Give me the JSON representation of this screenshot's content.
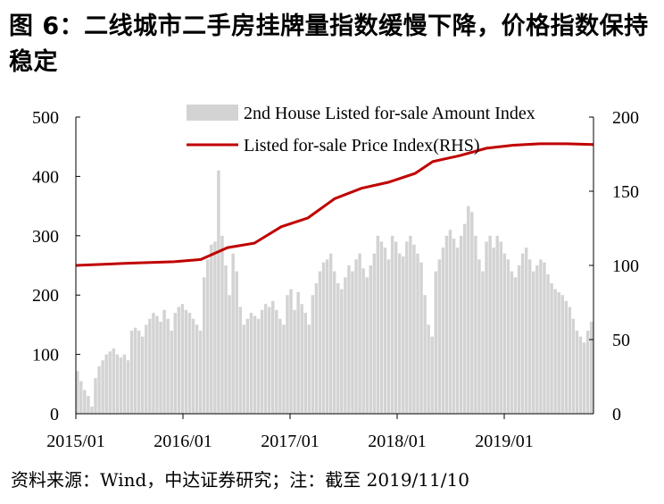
{
  "title": "图 6：二线城市二手房挂牌量指数缓慢下降，价格指数保持稳定",
  "source_note": "资料来源：Wind，中达证券研究；注：截至 2019/11/10",
  "colors": {
    "bars": "#d3d3d3",
    "line": "#c00000"
  },
  "chart_data": {
    "type": "bar+line",
    "title": "",
    "ylim_left": [
      0,
      500
    ],
    "ylim_right": [
      0,
      200
    ],
    "yticks_left": [
      "0",
      "100",
      "200",
      "300",
      "400",
      "500"
    ],
    "yticks_right": [
      "0",
      "50",
      "100",
      "150",
      "200"
    ],
    "xticks": [
      "2015/01",
      "2016/01",
      "2017/01",
      "2018/01",
      "2019/01"
    ],
    "x_range": [
      "2015/01",
      "2019/11"
    ],
    "legend_position": "top-right",
    "series": [
      {
        "name": "2nd House Listed for-sale Amount Index",
        "kind": "bar",
        "axis": "left",
        "values": [
          72,
          55,
          40,
          30,
          12,
          60,
          80,
          90,
          100,
          105,
          110,
          100,
          95,
          100,
          90,
          140,
          145,
          140,
          130,
          150,
          160,
          170,
          165,
          155,
          175,
          160,
          140,
          170,
          180,
          185,
          175,
          170,
          160,
          150,
          140,
          230,
          260,
          285,
          290,
          410,
          300,
          250,
          200,
          270,
          240,
          180,
          150,
          160,
          170,
          165,
          160,
          175,
          185,
          180,
          190,
          175,
          160,
          150,
          200,
          210,
          175,
          205,
          185,
          170,
          150,
          200,
          220,
          240,
          255,
          260,
          270,
          240,
          220,
          210,
          230,
          250,
          240,
          260,
          270,
          245,
          230,
          250,
          270,
          300,
          290,
          280,
          260,
          300,
          290,
          270,
          265,
          290,
          300,
          285,
          270,
          255,
          200,
          150,
          130,
          240,
          260,
          280,
          300,
          310,
          295,
          280,
          300,
          320,
          350,
          340,
          300,
          260,
          240,
          290,
          300,
          280,
          300,
          290,
          270,
          260,
          240,
          230,
          250,
          270,
          280,
          260,
          240,
          250,
          260,
          255,
          235,
          220,
          210,
          205,
          200,
          190,
          180,
          160,
          140,
          130,
          120,
          140,
          155
        ]
      },
      {
        "name": "Listed for-sale Price Index(RHS)",
        "kind": "line",
        "axis": "right",
        "points": [
          [
            "2015/01",
            100.0
          ],
          [
            "2015/07",
            101.5
          ],
          [
            "2015/12",
            102.5
          ],
          [
            "2016/03",
            104.0
          ],
          [
            "2016/06",
            112.0
          ],
          [
            "2016/09",
            115.0
          ],
          [
            "2016/12",
            126.0
          ],
          [
            "2017/03",
            132.0
          ],
          [
            "2017/06",
            145.0
          ],
          [
            "2017/09",
            152.0
          ],
          [
            "2017/12",
            156.0
          ],
          [
            "2018/03",
            162.0
          ],
          [
            "2018/05",
            170.0
          ],
          [
            "2018/08",
            174.0
          ],
          [
            "2018/11",
            179.0
          ],
          [
            "2019/02",
            181.0
          ],
          [
            "2019/05",
            182.0
          ],
          [
            "2019/08",
            182.0
          ],
          [
            "2019/11",
            181.5
          ]
        ]
      }
    ]
  }
}
